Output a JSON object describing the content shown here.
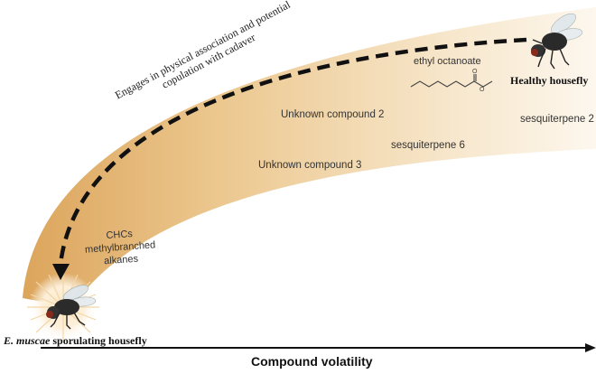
{
  "figure": {
    "arrow_label": "Engages in physical association and potential copulation with cadaver",
    "arrow_label_line1": "Engages in physical association and potential",
    "arrow_label_line2": "copulation with cadaver",
    "healthy_label": "Healthy housefly",
    "sporulating_label_italic": "E. muscae",
    "sporulating_label_rest": " sporulating housefly",
    "x_axis_label": "Compound volatility",
    "compounds": {
      "ethyl_octanoate": "ethyl octanoate",
      "unknown2": "Unknown compound 2",
      "unknown3": "Unknown compound 3",
      "sesq6": "sesquiterpene 6",
      "sesq2": "sesquiterpene 2",
      "chcs_line1": "CHCs",
      "chcs_line2": "methylbranched",
      "chcs_line3": "alkanes"
    },
    "colors": {
      "band_light": "#fdf6ea",
      "band_dark": "#e3b26a",
      "arrow": "#111111",
      "text": "#333333"
    },
    "icons": [
      "housefly-healthy-icon",
      "housefly-sporulating-icon",
      "glow-burst-icon",
      "ethyl-octanoate-structure-icon"
    ]
  }
}
